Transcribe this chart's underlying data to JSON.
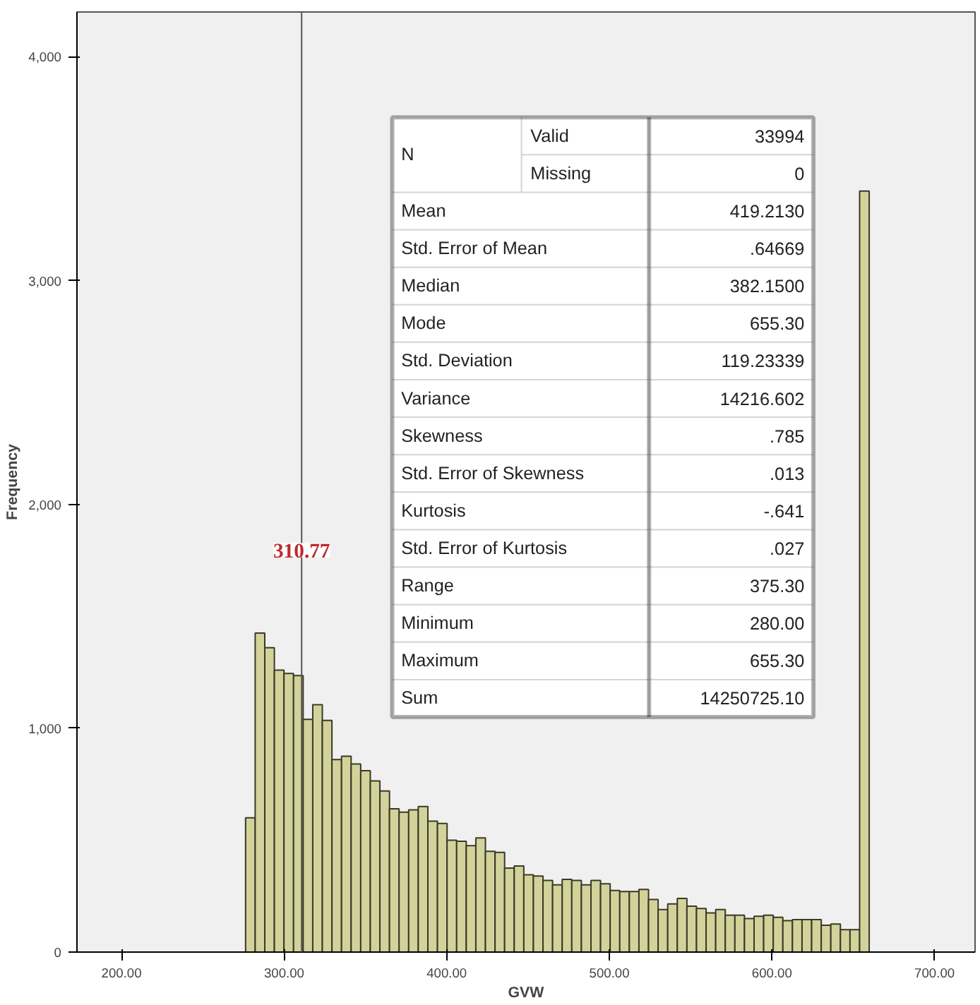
{
  "chart_data": {
    "type": "histogram",
    "xlabel": "GVW",
    "ylabel": "Frequency",
    "bins": [
      276.3,
      282.2,
      288.1,
      294.0,
      299.9,
      305.8,
      311.7,
      317.6,
      323.5,
      329.4,
      335.3,
      341.2,
      347.1,
      353.0,
      358.9,
      364.8,
      370.7,
      376.6,
      382.5,
      388.4,
      394.3,
      400.2,
      406.1,
      412.0,
      417.9,
      423.8,
      429.7,
      435.6,
      441.5,
      447.4,
      453.3,
      459.2,
      465.1,
      471.0,
      476.9,
      482.8,
      488.7,
      494.6,
      500.5,
      506.4,
      512.3,
      518.2,
      524.1,
      530.0,
      535.9,
      541.8,
      547.7,
      553.6,
      559.5,
      565.4,
      571.3,
      577.2,
      583.1,
      589.0,
      594.9,
      600.8,
      606.7,
      612.6,
      618.5,
      624.4,
      630.3,
      636.2,
      642.1,
      648.0,
      653.9,
      659.8
    ],
    "values": [
      600,
      1425,
      1360,
      1260,
      1245,
      1235,
      1040,
      1105,
      1035,
      860,
      875,
      840,
      810,
      765,
      720,
      640,
      625,
      635,
      650,
      585,
      575,
      500,
      495,
      475,
      510,
      450,
      445,
      375,
      385,
      345,
      340,
      320,
      300,
      325,
      320,
      300,
      320,
      305,
      275,
      270,
      270,
      280,
      235,
      190,
      215,
      240,
      205,
      195,
      175,
      190,
      165,
      165,
      150,
      160,
      165,
      155,
      140,
      145,
      145,
      145,
      120,
      125,
      100,
      100,
      3400
    ],
    "color": "#d2d29a",
    "xlim": [
      172.6,
      724.9
    ],
    "ylim": [
      0,
      4200
    ],
    "xticks": [
      {
        "value": 200,
        "label": "200.00"
      },
      {
        "value": 300,
        "label": "300.00"
      },
      {
        "value": 400,
        "label": "400.00"
      },
      {
        "value": 500,
        "label": "500.00"
      },
      {
        "value": 600,
        "label": "600.00"
      },
      {
        "value": 700,
        "label": "700.00"
      }
    ],
    "yticks": [
      0,
      {
        "value": 1000,
        "label": "1,000"
      },
      {
        "value": 2000,
        "label": "2,000"
      },
      {
        "value": 3000,
        "label": "3,000"
      },
      {
        "value": 4000,
        "label": "4,000"
      }
    ],
    "grid": false,
    "ref_lines": [
      {
        "axis": "x",
        "value": 310.77,
        "label": "310.77",
        "color": "#555555"
      }
    ],
    "annotations": [
      "N",
      "Valid",
      "33994",
      "Missing",
      "0",
      "Mean",
      "419.2130",
      "Std. Error of Mean",
      ".64669",
      "Median",
      "382.1500",
      "Mode",
      "655.30",
      "Std. Deviation",
      "119.23339",
      "Variance",
      "14216.602",
      "Skewness",
      ".785",
      "Std. Error of Skewness",
      ".013",
      "Kurtosis",
      "-.641",
      "Std. Error of Kurtosis",
      ".027",
      "Range",
      "375.30",
      "Minimum",
      "280.00",
      "Maximum",
      "655.30",
      "Sum",
      "14250725.10"
    ]
  }
}
